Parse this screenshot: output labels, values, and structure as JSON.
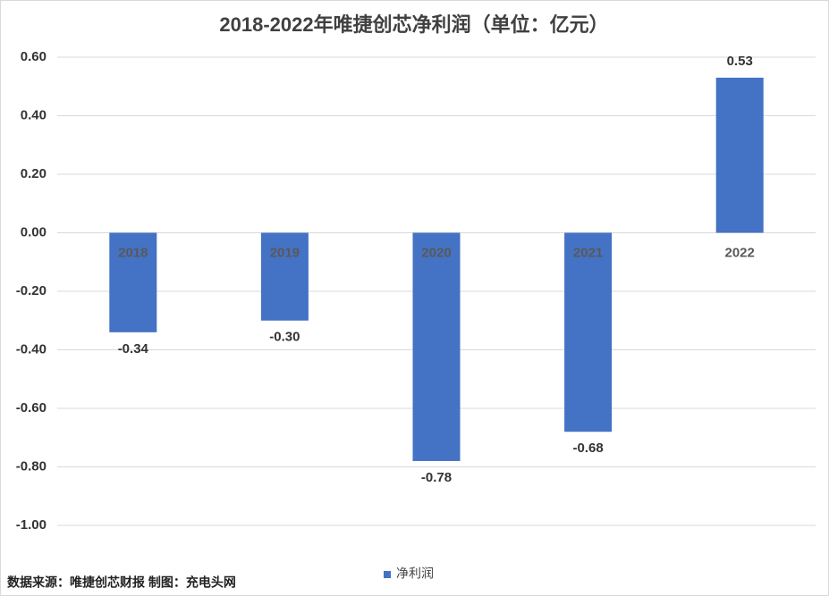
{
  "chart_data": {
    "type": "bar",
    "title": "2018-2022年唯捷创芯净利润（单位：亿元）",
    "categories": [
      "2018",
      "2019",
      "2020",
      "2021",
      "2022"
    ],
    "series": [
      {
        "name": "净利润",
        "color": "#4472c4",
        "values": [
          -0.34,
          -0.3,
          -0.78,
          -0.68,
          0.53
        ],
        "value_labels": [
          "-0.34",
          "-0.30",
          "-0.78",
          "-0.68",
          "0.53"
        ]
      }
    ],
    "ylim": [
      -1,
      0.6
    ],
    "yticks": [
      {
        "value": 0.6,
        "label": "0.60"
      },
      {
        "value": 0.4,
        "label": "0.40"
      },
      {
        "value": 0.2,
        "label": "0.20"
      },
      {
        "value": 0,
        "label": "0.00"
      },
      {
        "value": -0.2,
        "label": "-0.20"
      },
      {
        "value": -0.4,
        "label": "-0.40"
      },
      {
        "value": -0.6,
        "label": "-0.60"
      },
      {
        "value": -0.8,
        "label": "-0.80"
      },
      {
        "value": -1,
        "label": "-1.00"
      }
    ],
    "grid": true,
    "legend": "bottom",
    "source": "数据来源：唯捷创芯财报 制图：充电头网"
  }
}
